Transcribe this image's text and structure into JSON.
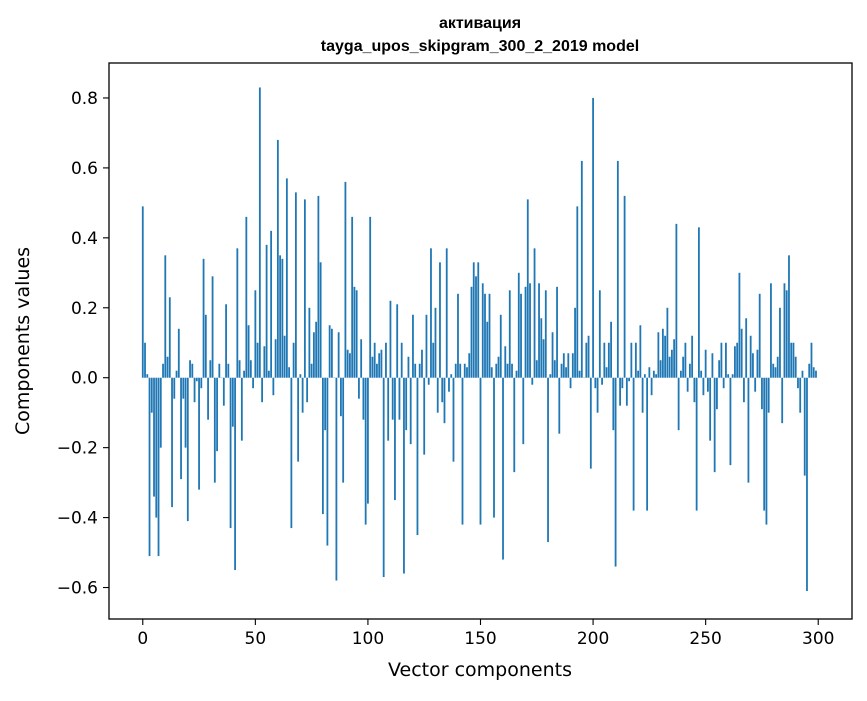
{
  "title_line1": "активация",
  "title_line2": "tayga_upos_skipgram_300_2_2019 model",
  "colors": {
    "bar": "#1f77b4",
    "axes": "#000000",
    "background": "#ffffff"
  },
  "chart_data": {
    "type": "bar",
    "title": "активация\ntayga_upos_skipgram_300_2_2019 model",
    "xlabel": "Vector components",
    "ylabel": "Components values",
    "xlim": [
      -15,
      315
    ],
    "ylim": [
      -0.69,
      0.9
    ],
    "xticks": [
      0,
      50,
      100,
      150,
      200,
      250,
      300
    ],
    "xtick_labels": [
      "0",
      "50",
      "100",
      "150",
      "200",
      "250",
      "300"
    ],
    "yticks": [
      -0.6,
      -0.4,
      -0.2,
      0.0,
      0.2,
      0.4,
      0.6,
      0.8
    ],
    "ytick_labels": [
      "−0.6",
      "−0.4",
      "−0.2",
      "0.0",
      "0.2",
      "0.4",
      "0.6",
      "0.8"
    ],
    "grid": false,
    "series": [
      {
        "values": [
          0.49,
          0.1,
          0.01,
          -0.51,
          -0.1,
          -0.34,
          -0.4,
          -0.51,
          -0.2,
          0.04,
          0.35,
          0.06,
          0.23,
          -0.37,
          -0.06,
          0.02,
          0.14,
          -0.29,
          -0.06,
          -0.2,
          -0.41,
          0.05,
          0.04,
          -0.07,
          -0.01,
          -0.32,
          -0.03,
          0.34,
          0.18,
          -0.12,
          0.05,
          0.29,
          -0.3,
          -0.21,
          0.04,
          0.0,
          -0.08,
          0.21,
          0.04,
          -0.43,
          -0.14,
          -0.55,
          0.37,
          0.05,
          -0.18,
          0.02,
          0.46,
          0.15,
          0.05,
          -0.03,
          0.25,
          0.1,
          0.83,
          -0.07,
          0.09,
          0.38,
          0.02,
          0.42,
          -0.05,
          0.11,
          0.68,
          0.35,
          0.34,
          0.12,
          0.57,
          0.03,
          -0.43,
          0.1,
          0.53,
          -0.24,
          0.01,
          -0.1,
          0.51,
          -0.07,
          0.2,
          0.04,
          0.13,
          0.16,
          0.52,
          0.33,
          -0.39,
          -0.15,
          -0.48,
          0.15,
          0.14,
          0.0,
          -0.58,
          0.13,
          -0.11,
          -0.3,
          0.56,
          0.08,
          0.07,
          0.46,
          0.26,
          0.25,
          -0.06,
          0.11,
          -0.12,
          -0.42,
          -0.36,
          0.46,
          0.06,
          0.1,
          0.04,
          0.07,
          0.08,
          -0.57,
          0.1,
          -0.18,
          0.22,
          -0.12,
          -0.35,
          0.21,
          -0.12,
          0.1,
          -0.56,
          -0.15,
          0.06,
          -0.19,
          0.18,
          0.04,
          -0.45,
          0.04,
          0.08,
          -0.22,
          0.18,
          -0.02,
          0.37,
          0.1,
          0.2,
          -0.1,
          0.33,
          -0.07,
          -0.13,
          0.37,
          -0.04,
          0.01,
          -0.24,
          0.04,
          0.24,
          0.04,
          -0.42,
          0.04,
          0.03,
          0.07,
          0.26,
          0.33,
          0.29,
          0.33,
          -0.42,
          0.27,
          0.24,
          0.16,
          0.24,
          0.03,
          -0.4,
          0.04,
          0.06,
          0.18,
          -0.52,
          0.09,
          0.04,
          0.25,
          0.04,
          -0.27,
          0.02,
          0.3,
          0.24,
          -0.19,
          0.26,
          0.51,
          0.27,
          -0.02,
          0.37,
          0.05,
          0.27,
          0.17,
          0.11,
          0.25,
          -0.47,
          0.01,
          0.13,
          0.05,
          0.26,
          -0.16,
          0.04,
          0.07,
          0.03,
          0.07,
          -0.03,
          0.07,
          0.2,
          0.49,
          0.02,
          0.62,
          0.0,
          0.1,
          0.12,
          -0.26,
          0.8,
          -0.03,
          -0.1,
          0.25,
          -0.02,
          0.1,
          0.03,
          0.1,
          0.16,
          -0.15,
          -0.54,
          0.62,
          -0.08,
          -0.03,
          0.52,
          -0.08,
          -0.01,
          0.1,
          -0.38,
          0.1,
          0.02,
          0.15,
          -0.1,
          0.01,
          -0.38,
          0.03,
          -0.05,
          0.02,
          0.01,
          0.13,
          0.05,
          0.14,
          0.12,
          0.2,
          0.06,
          0.08,
          0.11,
          0.44,
          -0.15,
          0.02,
          0.06,
          0.1,
          -0.04,
          0.04,
          0.12,
          -0.07,
          -0.38,
          0.43,
          0.02,
          -0.05,
          0.08,
          -0.04,
          -0.18,
          0.07,
          -0.27,
          -0.09,
          0.05,
          0.1,
          -0.03,
          0.1,
          0.01,
          -0.25,
          0.01,
          0.09,
          0.1,
          0.3,
          0.14,
          -0.07,
          0.17,
          -0.3,
          0.12,
          0.07,
          -0.04,
          0.08,
          0.24,
          -0.09,
          -0.38,
          -0.42,
          -0.1,
          0.27,
          0.04,
          0.03,
          0.06,
          0.2,
          -0.13,
          0.27,
          0.25,
          0.35,
          0.1,
          0.1,
          0.06,
          -0.03,
          -0.1,
          0.02,
          -0.28,
          -0.61,
          0.04,
          0.1,
          0.03,
          0.02
        ]
      }
    ]
  }
}
